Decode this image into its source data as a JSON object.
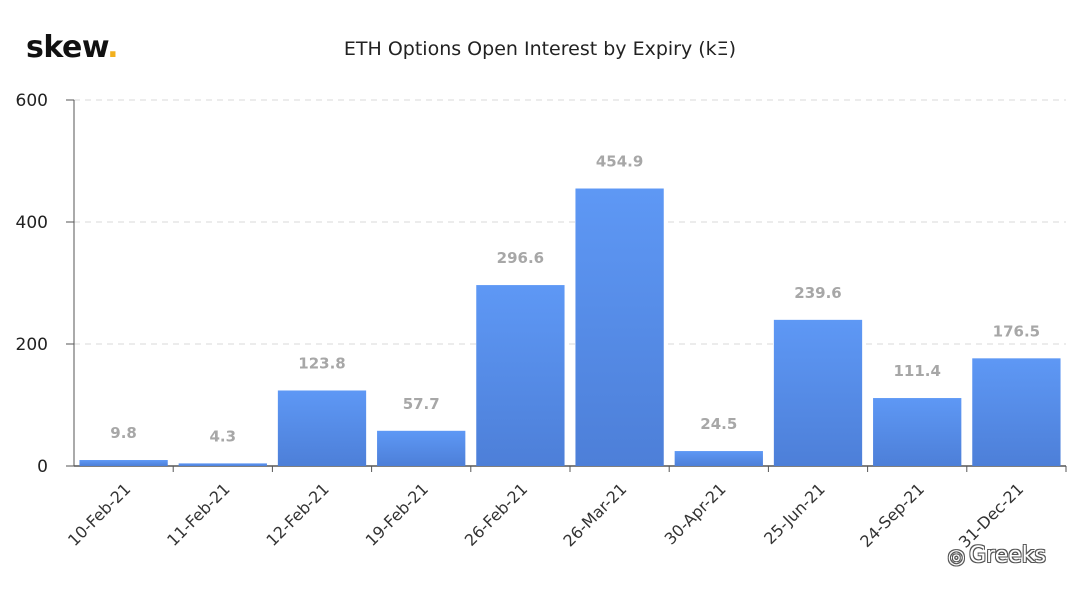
{
  "header": {
    "logo_text": "skew",
    "logo_dot": "."
  },
  "watermark": {
    "icon": "wechat-icon",
    "text": "Greeks"
  },
  "colors": {
    "bar_top": "#5e98f5",
    "bar_bottom": "#4d7fd8",
    "grid": "#d9d9d9",
    "axis": "#555555",
    "logo_dot": "#f2b01e"
  },
  "chart_data": {
    "type": "bar",
    "title": "ETH Options Open Interest by Expiry (kΞ)",
    "xlabel": "",
    "ylabel": "",
    "categories": [
      "10-Feb-21",
      "11-Feb-21",
      "12-Feb-21",
      "19-Feb-21",
      "26-Feb-21",
      "26-Mar-21",
      "30-Apr-21",
      "25-Jun-21",
      "24-Sep-21",
      "31-Dec-21"
    ],
    "values": [
      9.8,
      4.3,
      123.8,
      57.7,
      296.6,
      454.9,
      24.5,
      239.6,
      111.4,
      176.5
    ],
    "data_labels": [
      "9.8",
      "4.3",
      "123.8",
      "57.7",
      "296.6",
      "454.9",
      "24.5",
      "239.6",
      "111.4",
      "176.5"
    ],
    "ylim": [
      0,
      600
    ],
    "yticks": [
      "0",
      "200",
      "400",
      "600"
    ],
    "grid": true,
    "legend": "none"
  }
}
